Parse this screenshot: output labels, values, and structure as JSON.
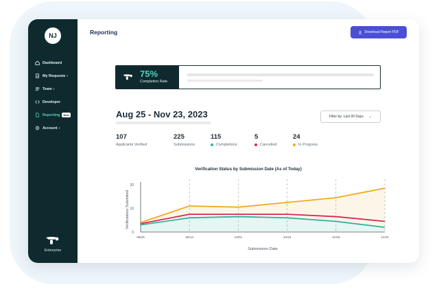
{
  "user": {
    "initials": "NJ"
  },
  "sidebar": {
    "items": [
      {
        "label": "Dashboard",
        "icon": "home-icon"
      },
      {
        "label": "My Requests",
        "icon": "file-check-icon",
        "chevron": "›"
      },
      {
        "label": "Team",
        "icon": "users-icon",
        "chevron": "›"
      },
      {
        "label": "Developer",
        "icon": "code-icon"
      },
      {
        "label": "Reporting",
        "icon": "document-icon",
        "badge": "New",
        "active": true
      },
      {
        "label": "Account",
        "icon": "gear-icon",
        "chevron": "›"
      }
    ],
    "footer_label": "Enterprise"
  },
  "header": {
    "title": "Reporting",
    "download_label": "Download Report PDF"
  },
  "banner": {
    "percent": "75%",
    "label": "Completion Rate"
  },
  "date_range": "Aug 25 - Nov 23, 2023",
  "filter": {
    "label": "Filter by: Last 90 Days",
    "chevron": "⌄"
  },
  "stats": [
    {
      "value": "107",
      "label": "Applicants Verified"
    },
    {
      "value": "225",
      "label": "Submissions"
    },
    {
      "value": "115",
      "label": "Completions",
      "color": "#2bb5a0"
    },
    {
      "value": "5",
      "label": "Cancelled",
      "color": "#d8245a"
    },
    {
      "value": "24",
      "label": "In Progress",
      "color": "#f0a91e"
    }
  ],
  "colors": {
    "accent": "#4a4fd6",
    "sidebar": "#0e2a2e",
    "teal": "#55d0b8"
  },
  "chart_data": {
    "type": "line",
    "title": "Verification Status by Submission Date (As of Today)",
    "xlabel": "Submission Date",
    "ylabel": "Verifications Submitted",
    "categories": [
      "08/25",
      "09/13",
      "10/01",
      "10/19",
      "11/05",
      "11/23"
    ],
    "ylim": [
      0,
      20
    ],
    "yticks": [
      0,
      10,
      20
    ],
    "series": [
      {
        "name": "In Progress",
        "color": "#f0a91e",
        "values": [
          4,
          11,
          10.5,
          12.5,
          14.5,
          18.5
        ]
      },
      {
        "name": "Cancelled",
        "color": "#d8245a",
        "values": [
          3.5,
          7.5,
          7.5,
          7.5,
          6.5,
          4.5
        ]
      },
      {
        "name": "Completions",
        "color": "#2bb5a0",
        "values": [
          3,
          6,
          6.5,
          6,
          4.5,
          2
        ]
      }
    ]
  }
}
